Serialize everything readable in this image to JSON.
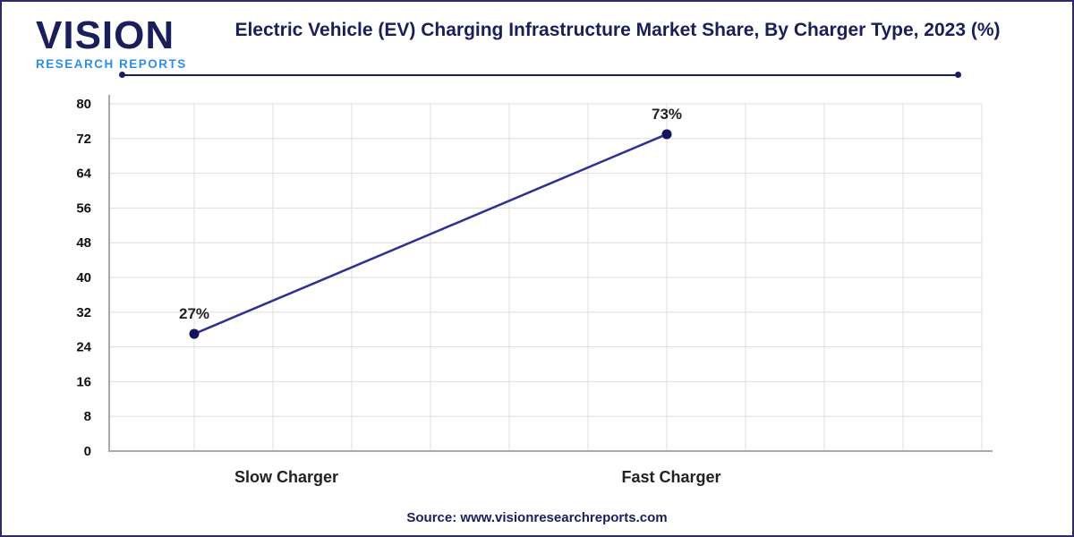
{
  "logo": {
    "word": "VISION",
    "sub": "RESEARCH REPORTS"
  },
  "source": "Source: www.visionresearchreports.com",
  "colors": {
    "line": "#2e3192",
    "marker": "#14145a",
    "brand": "#1a1f5c",
    "accent": "#2d8ee8",
    "grid": "#dddddd"
  },
  "chart_data": {
    "type": "line",
    "title": "Electric Vehicle (EV) Charging Infrastructure Market Share, By Charger Type, 2023 (%)",
    "categories": [
      "Slow Charger",
      "Fast Charger"
    ],
    "values": [
      27,
      73
    ],
    "data_labels": [
      "27%",
      "73%"
    ],
    "ylim": [
      0,
      80
    ],
    "yticks": [
      "0",
      "8",
      "16",
      "24",
      "32",
      "40",
      "48",
      "56",
      "64",
      "72",
      "80"
    ],
    "grid": true,
    "xlabel": "",
    "ylabel": ""
  }
}
